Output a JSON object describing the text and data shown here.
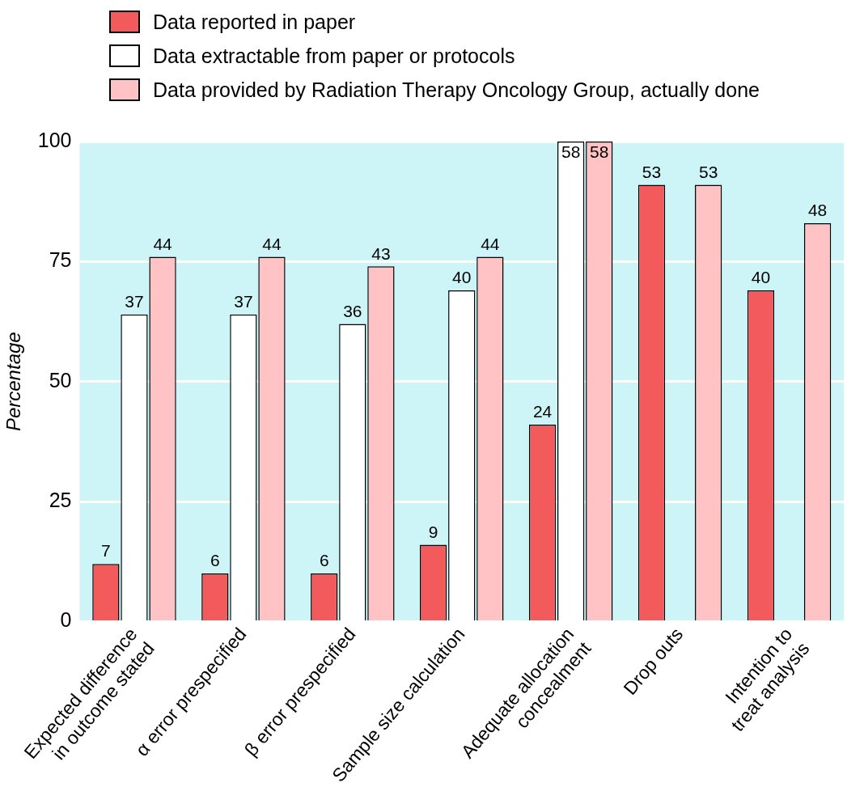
{
  "chart_data": {
    "type": "bar",
    "ylabel": "Percentage",
    "categories": [
      "Expected difference\nin outcome stated",
      "α error prespecified",
      "β error prespecified",
      "Sample size calculation",
      "Adequate allocation\nconcealment",
      "Drop outs",
      "Intention to\ntreat analysis"
    ],
    "series": [
      {
        "name": "Data reported in paper",
        "color": "#f25a5c",
        "values": [
          12,
          10,
          10,
          16,
          41,
          91,
          69
        ]
      },
      {
        "name": "Data extractable from paper or protocols",
        "color": "#ffffff",
        "values": [
          64,
          64,
          62,
          69,
          100,
          null,
          null
        ]
      },
      {
        "name": "Data provided by Radiation Therapy Oncology Group, actually done",
        "color": "#ffc3c5",
        "values": [
          76,
          76,
          74,
          76,
          100,
          91,
          83
        ]
      }
    ],
    "annotations": [
      "7",
      "37",
      "44",
      "6",
      "37",
      "44",
      "6",
      "36",
      "43",
      "9",
      "40",
      "44",
      "24",
      "58",
      "58",
      "53",
      "53",
      "40",
      "48"
    ],
    "ylim": [
      0,
      100
    ],
    "yticks": [
      0,
      25,
      50,
      75,
      100
    ],
    "grid": "y",
    "legend": "top left"
  }
}
